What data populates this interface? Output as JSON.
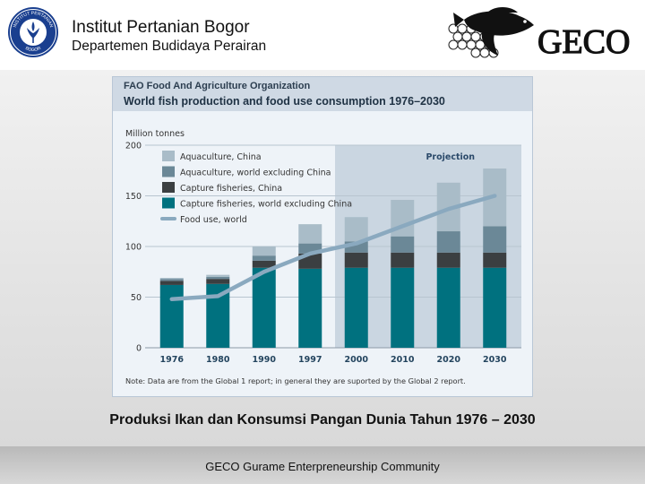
{
  "header": {
    "institution": "Institut Pertanian Bogor",
    "department": "Departemen Budidaya Perairan",
    "logo_text_top": "INSTITUT PERTANIAN",
    "logo_text_bottom": "BOGOR",
    "brand": "GECO"
  },
  "figure": {
    "org_line": "FAO Food And Agriculture Organization",
    "title_line": "World fish production and food use consumption 1976–2030",
    "note": "Note: Data are from the Global 1 report; in general they are suported by the Global 2 report."
  },
  "chart_data": {
    "type": "bar",
    "stacked": true,
    "ylabel": "Million tonnes",
    "ylim": [
      0,
      200
    ],
    "yticks": [
      0,
      50,
      100,
      150,
      200
    ],
    "categories": [
      "1976",
      "1980",
      "1990",
      "1997",
      "2000",
      "2010",
      "2020",
      "2030"
    ],
    "projection_label": "Projection",
    "projection_start": "2000",
    "series": [
      {
        "name": "Capture fisheries, world excluding China",
        "values": [
          62,
          63,
          79,
          78,
          79,
          79,
          79,
          79
        ],
        "color": "#00717f"
      },
      {
        "name": "Capture fisheries, China",
        "values": [
          4,
          5,
          7,
          15,
          15,
          15,
          15,
          15
        ],
        "color": "#3b3f41"
      },
      {
        "name": "Aquaculture, world excluding China",
        "values": [
          2,
          2,
          5,
          10,
          11,
          16,
          21,
          26
        ],
        "color": "#6b8897"
      },
      {
        "name": "Aquaculture, China",
        "values": [
          1,
          2,
          9,
          19,
          24,
          36,
          48,
          57
        ],
        "color": "#a9bcc8"
      }
    ],
    "line_series": {
      "name": "Food use, world",
      "values": [
        48,
        51,
        75,
        93,
        103,
        120,
        137,
        150
      ],
      "color": "#8aa9bf"
    },
    "legend_position": "top-left"
  },
  "caption": "Produksi Ikan dan Konsumsi Pangan Dunia Tahun 1976 – 2030",
  "footer": "GECO  Gurame Enterpreneurship Community"
}
